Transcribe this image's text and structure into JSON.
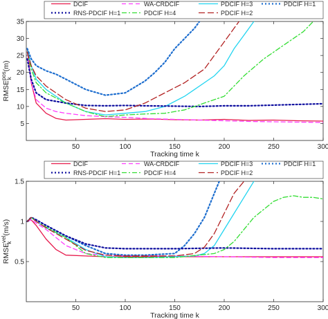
{
  "chart_data": [
    {
      "type": "line",
      "xlabel": "Tracking time k",
      "ylabel": "RMSE",
      "ylabel_sup": "pos",
      "ylabel_sub": "k",
      "ylabel_unit": "(m)",
      "xlim": [
        0,
        300
      ],
      "ylim": [
        0,
        35
      ],
      "xticks": [
        50,
        100,
        150,
        200,
        250,
        300
      ],
      "yticks": [
        5,
        10,
        15,
        20,
        25,
        30,
        35
      ],
      "grid": false,
      "legend": "top-outside",
      "series": [
        {
          "name": "DCIF",
          "color": "#e6194b",
          "dash": "solid",
          "x": [
            1,
            5,
            10,
            20,
            30,
            40,
            60,
            80,
            100,
            125,
            150,
            175,
            200,
            225,
            250,
            275,
            300
          ],
          "y": [
            27,
            17,
            11,
            8,
            6.5,
            6,
            6.2,
            6.4,
            6.2,
            6.3,
            6.1,
            6.0,
            6.2,
            5.9,
            6.0,
            5.8,
            5.7
          ]
        },
        {
          "name": "WA-CRDCIF",
          "color": "#ff3dff",
          "dash": "dash",
          "x": [
            1,
            5,
            10,
            20,
            30,
            40,
            60,
            80,
            100,
            125,
            150,
            175,
            200,
            225,
            250,
            275,
            300
          ],
          "y": [
            26,
            17,
            12,
            9.5,
            8.5,
            8,
            7.3,
            7,
            6.8,
            6.4,
            6.2,
            6.0,
            5.8,
            5.6,
            5.5,
            5.4,
            5.3
          ]
        },
        {
          "name": "PDCIF H=3",
          "color": "#20d4f0",
          "dash": "solid",
          "x": [
            1,
            5,
            10,
            20,
            30,
            40,
            60,
            80,
            100,
            120,
            140,
            160,
            170,
            180,
            190,
            200,
            210,
            220,
            230
          ],
          "y": [
            27,
            22,
            18,
            15,
            13,
            11,
            8.5,
            7.5,
            8,
            8.5,
            10,
            13,
            15,
            17,
            19,
            22,
            27,
            31,
            35
          ]
        },
        {
          "name": "PDCIF H=1",
          "color": "#1f6fcf",
          "dash": "dot",
          "x": [
            1,
            5,
            10,
            20,
            30,
            40,
            60,
            80,
            100,
            120,
            130,
            140,
            150,
            160,
            170,
            175
          ],
          "y": [
            27,
            24,
            22,
            20.5,
            19.5,
            18,
            15,
            13.3,
            14,
            17.5,
            20,
            23,
            27,
            30,
            33,
            35
          ]
        },
        {
          "name": "RNS-PDCIF H=1",
          "color": "#0c0c9e",
          "dash": "dot",
          "x": [
            1,
            5,
            10,
            20,
            40,
            60,
            80,
            100,
            120,
            150,
            175,
            200,
            225,
            250,
            275,
            300
          ],
          "y": [
            24,
            18,
            14,
            12,
            11,
            10.3,
            10.2,
            10.3,
            10.2,
            10.1,
            10,
            10.2,
            10.2,
            10.4,
            10.6,
            10.8
          ]
        },
        {
          "name": "PDCIF H=4",
          "color": "#33dd33",
          "dash": "dashdot",
          "x": [
            1,
            5,
            10,
            20,
            40,
            60,
            80,
            100,
            120,
            140,
            160,
            180,
            200,
            220,
            240,
            260,
            280,
            290
          ],
          "y": [
            26,
            21,
            17,
            14,
            11,
            8.5,
            7,
            7.5,
            7.8,
            8,
            9,
            11,
            13,
            19,
            24,
            28,
            32,
            35
          ]
        },
        {
          "name": "PDCIF H=2",
          "color": "#b22222",
          "dash": "longdash",
          "x": [
            1,
            5,
            10,
            20,
            40,
            60,
            80,
            100,
            120,
            140,
            160,
            180,
            190,
            200,
            210,
            215
          ],
          "y": [
            26,
            22,
            19,
            16,
            12,
            9.5,
            8.5,
            9,
            11,
            14,
            17,
            21,
            25,
            29,
            33,
            35
          ]
        }
      ]
    },
    {
      "type": "line",
      "xlabel": "Tracking time k",
      "ylabel": "RMSE",
      "ylabel_sup": "vel",
      "ylabel_sub": "k",
      "ylabel_unit": "(m/s)",
      "xlim": [
        0,
        300
      ],
      "ylim": [
        0,
        1.5
      ],
      "xticks": [
        50,
        100,
        150,
        200,
        250,
        300
      ],
      "yticks": [
        0.5,
        1,
        1.5
      ],
      "grid": false,
      "legend": "top-outside",
      "series": [
        {
          "name": "DCIF",
          "color": "#e6194b",
          "dash": "solid",
          "x": [
            1,
            5,
            10,
            20,
            30,
            40,
            60,
            80,
            100,
            150,
            200,
            250,
            300
          ],
          "y": [
            1.0,
            1.02,
            0.95,
            0.78,
            0.65,
            0.58,
            0.57,
            0.56,
            0.56,
            0.56,
            0.56,
            0.56,
            0.56
          ]
        },
        {
          "name": "WA-CRDCIF",
          "color": "#ff3dff",
          "dash": "dash",
          "x": [
            1,
            5,
            10,
            20,
            30,
            40,
            60,
            80,
            100,
            150,
            200,
            250,
            300
          ],
          "y": [
            1.0,
            1.02,
            0.98,
            0.9,
            0.8,
            0.7,
            0.6,
            0.58,
            0.57,
            0.57,
            0.56,
            0.55,
            0.55
          ]
        },
        {
          "name": "PDCIF H=3",
          "color": "#20d4f0",
          "dash": "solid",
          "x": [
            1,
            5,
            10,
            20,
            40,
            60,
            80,
            100,
            120,
            150,
            170,
            180,
            190,
            200,
            210,
            220,
            230
          ],
          "y": [
            1.0,
            1.05,
            1.0,
            0.92,
            0.8,
            0.65,
            0.56,
            0.55,
            0.55,
            0.56,
            0.57,
            0.6,
            0.7,
            0.9,
            1.1,
            1.3,
            1.5
          ]
        },
        {
          "name": "PDCIF H=1",
          "color": "#1f6fcf",
          "dash": "dot",
          "x": [
            1,
            5,
            10,
            20,
            40,
            60,
            80,
            100,
            120,
            150,
            160,
            170,
            180,
            185,
            190,
            195
          ],
          "y": [
            1.0,
            1.05,
            1.02,
            0.95,
            0.82,
            0.7,
            0.6,
            0.58,
            0.58,
            0.6,
            0.7,
            0.85,
            1.05,
            1.2,
            1.35,
            1.5
          ]
        },
        {
          "name": "RNS-PDCIF H=1",
          "color": "#0c0c9e",
          "dash": "dot",
          "x": [
            1,
            5,
            10,
            20,
            40,
            60,
            80,
            100,
            150,
            200,
            250,
            300
          ],
          "y": [
            1.0,
            1.05,
            1.02,
            0.95,
            0.82,
            0.72,
            0.67,
            0.66,
            0.66,
            0.67,
            0.66,
            0.66
          ]
        },
        {
          "name": "PDCIF H=4",
          "color": "#33dd33",
          "dash": "dashdot",
          "x": [
            1,
            5,
            10,
            20,
            40,
            60,
            80,
            100,
            150,
            190,
            200,
            210,
            220,
            230,
            240,
            250,
            260,
            270,
            280,
            290,
            300
          ],
          "y": [
            1.0,
            1.05,
            1.0,
            0.93,
            0.8,
            0.6,
            0.55,
            0.55,
            0.55,
            0.6,
            0.65,
            0.75,
            0.9,
            1.05,
            1.15,
            1.25,
            1.3,
            1.32,
            1.3,
            1.3,
            1.28
          ]
        },
        {
          "name": "PDCIF H=2",
          "color": "#b22222",
          "dash": "longdash",
          "x": [
            1,
            5,
            10,
            20,
            40,
            60,
            80,
            100,
            150,
            170,
            180,
            190,
            200,
            210,
            220
          ],
          "y": [
            1.0,
            1.05,
            1.0,
            0.92,
            0.78,
            0.64,
            0.58,
            0.57,
            0.57,
            0.6,
            0.68,
            0.85,
            1.1,
            1.35,
            1.5
          ]
        }
      ]
    }
  ]
}
